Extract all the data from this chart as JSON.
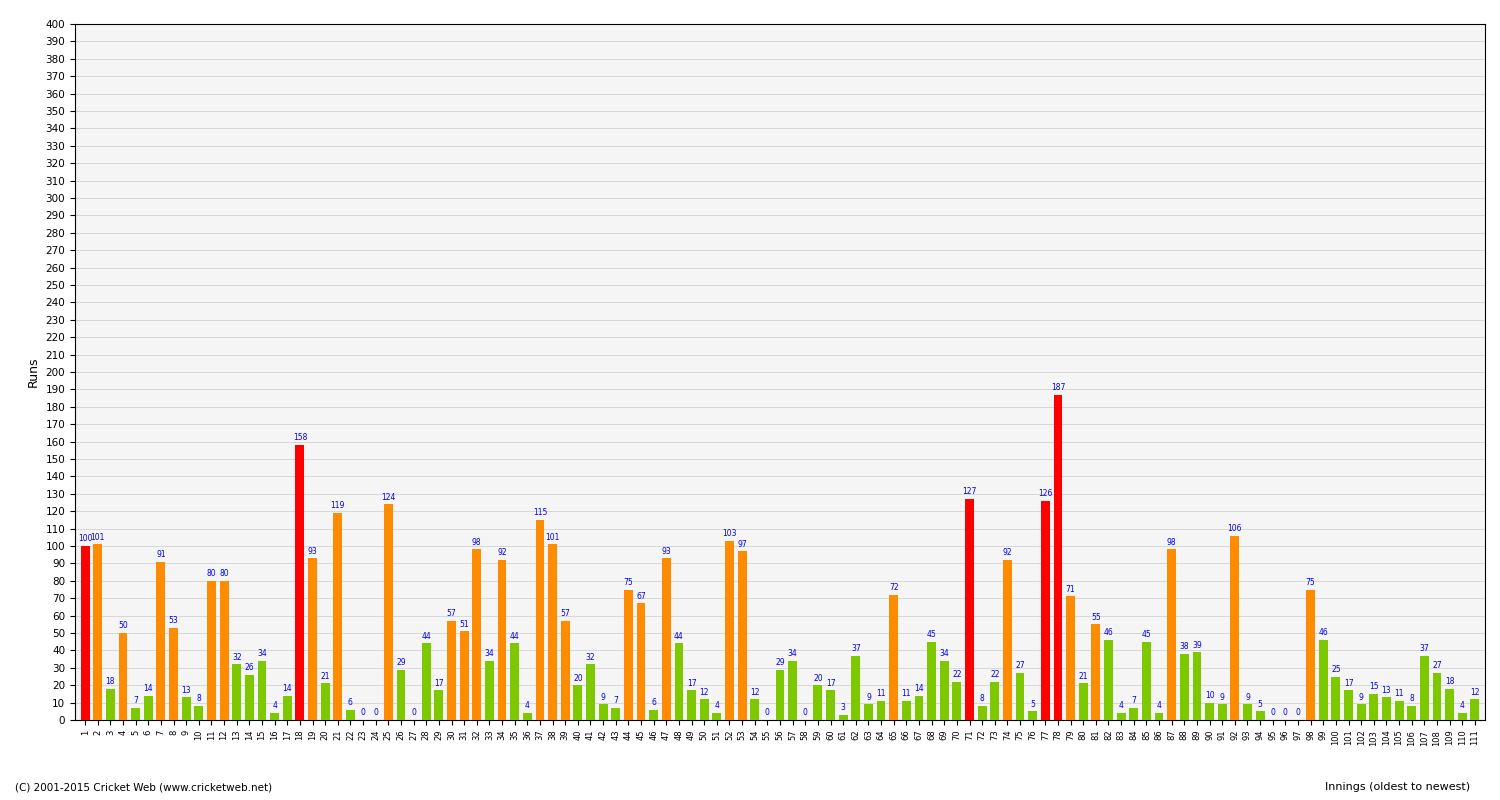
{
  "ylabel": "Runs",
  "xlabel": "Innings (oldest to newest)",
  "footer": "(C) 2001-2015 Cricket Web (www.cricketweb.net)",
  "ylim": [
    0,
    400
  ],
  "bar_width": 0.7,
  "innings": [
    {
      "innings": 1,
      "runs": 100,
      "color": "red"
    },
    {
      "innings": 2,
      "runs": 101,
      "color": "orange"
    },
    {
      "innings": 3,
      "runs": 18,
      "color": "green"
    },
    {
      "innings": 4,
      "runs": 50,
      "color": "orange"
    },
    {
      "innings": 5,
      "runs": 7,
      "color": "green"
    },
    {
      "innings": 6,
      "runs": 14,
      "color": "green"
    },
    {
      "innings": 7,
      "runs": 91,
      "color": "orange"
    },
    {
      "innings": 8,
      "runs": 53,
      "color": "orange"
    },
    {
      "innings": 9,
      "runs": 13,
      "color": "green"
    },
    {
      "innings": 10,
      "runs": 8,
      "color": "green"
    },
    {
      "innings": 11,
      "runs": 80,
      "color": "orange"
    },
    {
      "innings": 12,
      "runs": 80,
      "color": "orange"
    },
    {
      "innings": 13,
      "runs": 32,
      "color": "green"
    },
    {
      "innings": 14,
      "runs": 26,
      "color": "green"
    },
    {
      "innings": 15,
      "runs": 34,
      "color": "green"
    },
    {
      "innings": 16,
      "runs": 4,
      "color": "green"
    },
    {
      "innings": 17,
      "runs": 14,
      "color": "green"
    },
    {
      "innings": 18,
      "runs": 158,
      "color": "red"
    },
    {
      "innings": 19,
      "runs": 93,
      "color": "orange"
    },
    {
      "innings": 20,
      "runs": 21,
      "color": "green"
    },
    {
      "innings": 21,
      "runs": 119,
      "color": "orange"
    },
    {
      "innings": 22,
      "runs": 6,
      "color": "green"
    },
    {
      "innings": 23,
      "runs": 0,
      "color": "green"
    },
    {
      "innings": 24,
      "runs": 0,
      "color": "green"
    },
    {
      "innings": 25,
      "runs": 124,
      "color": "orange"
    },
    {
      "innings": 26,
      "runs": 29,
      "color": "green"
    },
    {
      "innings": 27,
      "runs": 0,
      "color": "green"
    },
    {
      "innings": 28,
      "runs": 44,
      "color": "green"
    },
    {
      "innings": 29,
      "runs": 17,
      "color": "green"
    },
    {
      "innings": 30,
      "runs": 57,
      "color": "orange"
    },
    {
      "innings": 31,
      "runs": 51,
      "color": "orange"
    },
    {
      "innings": 32,
      "runs": 98,
      "color": "orange"
    },
    {
      "innings": 33,
      "runs": 34,
      "color": "green"
    },
    {
      "innings": 34,
      "runs": 92,
      "color": "orange"
    },
    {
      "innings": 35,
      "runs": 44,
      "color": "green"
    },
    {
      "innings": 36,
      "runs": 4,
      "color": "green"
    },
    {
      "innings": 37,
      "runs": 115,
      "color": "orange"
    },
    {
      "innings": 38,
      "runs": 101,
      "color": "orange"
    },
    {
      "innings": 39,
      "runs": 57,
      "color": "orange"
    },
    {
      "innings": 40,
      "runs": 20,
      "color": "green"
    },
    {
      "innings": 41,
      "runs": 32,
      "color": "green"
    },
    {
      "innings": 42,
      "runs": 9,
      "color": "green"
    },
    {
      "innings": 43,
      "runs": 7,
      "color": "green"
    },
    {
      "innings": 44,
      "runs": 75,
      "color": "orange"
    },
    {
      "innings": 45,
      "runs": 67,
      "color": "orange"
    },
    {
      "innings": 46,
      "runs": 6,
      "color": "green"
    },
    {
      "innings": 47,
      "runs": 93,
      "color": "orange"
    },
    {
      "innings": 48,
      "runs": 44,
      "color": "green"
    },
    {
      "innings": 49,
      "runs": 17,
      "color": "green"
    },
    {
      "innings": 50,
      "runs": 12,
      "color": "green"
    },
    {
      "innings": 51,
      "runs": 4,
      "color": "green"
    },
    {
      "innings": 52,
      "runs": 103,
      "color": "orange"
    },
    {
      "innings": 53,
      "runs": 97,
      "color": "orange"
    },
    {
      "innings": 54,
      "runs": 12,
      "color": "green"
    },
    {
      "innings": 55,
      "runs": 0,
      "color": "green"
    },
    {
      "innings": 56,
      "runs": 29,
      "color": "green"
    },
    {
      "innings": 57,
      "runs": 34,
      "color": "green"
    },
    {
      "innings": 58,
      "runs": 0,
      "color": "green"
    },
    {
      "innings": 59,
      "runs": 20,
      "color": "green"
    },
    {
      "innings": 60,
      "runs": 17,
      "color": "green"
    },
    {
      "innings": 61,
      "runs": 3,
      "color": "green"
    },
    {
      "innings": 62,
      "runs": 37,
      "color": "green"
    },
    {
      "innings": 63,
      "runs": 9,
      "color": "green"
    },
    {
      "innings": 64,
      "runs": 11,
      "color": "green"
    },
    {
      "innings": 65,
      "runs": 72,
      "color": "orange"
    },
    {
      "innings": 66,
      "runs": 11,
      "color": "green"
    },
    {
      "innings": 67,
      "runs": 14,
      "color": "green"
    },
    {
      "innings": 68,
      "runs": 45,
      "color": "green"
    },
    {
      "innings": 69,
      "runs": 34,
      "color": "green"
    },
    {
      "innings": 70,
      "runs": 22,
      "color": "green"
    },
    {
      "innings": 71,
      "runs": 127,
      "color": "red"
    },
    {
      "innings": 72,
      "runs": 8,
      "color": "green"
    },
    {
      "innings": 73,
      "runs": 22,
      "color": "green"
    },
    {
      "innings": 74,
      "runs": 92,
      "color": "orange"
    },
    {
      "innings": 75,
      "runs": 27,
      "color": "green"
    },
    {
      "innings": 76,
      "runs": 5,
      "color": "green"
    },
    {
      "innings": 77,
      "runs": 126,
      "color": "red"
    },
    {
      "innings": 78,
      "runs": 187,
      "color": "red"
    },
    {
      "innings": 79,
      "runs": 71,
      "color": "orange"
    },
    {
      "innings": 80,
      "runs": 21,
      "color": "green"
    },
    {
      "innings": 81,
      "runs": 55,
      "color": "orange"
    },
    {
      "innings": 82,
      "runs": 46,
      "color": "green"
    },
    {
      "innings": 83,
      "runs": 4,
      "color": "green"
    },
    {
      "innings": 84,
      "runs": 7,
      "color": "green"
    },
    {
      "innings": 85,
      "runs": 45,
      "color": "green"
    },
    {
      "innings": 86,
      "runs": 4,
      "color": "green"
    },
    {
      "innings": 87,
      "runs": 98,
      "color": "orange"
    },
    {
      "innings": 88,
      "runs": 38,
      "color": "green"
    },
    {
      "innings": 89,
      "runs": 39,
      "color": "green"
    },
    {
      "innings": 90,
      "runs": 10,
      "color": "green"
    },
    {
      "innings": 91,
      "runs": 9,
      "color": "green"
    },
    {
      "innings": 92,
      "runs": 106,
      "color": "orange"
    },
    {
      "innings": 93,
      "runs": 9,
      "color": "green"
    },
    {
      "innings": 94,
      "runs": 5,
      "color": "green"
    },
    {
      "innings": 95,
      "runs": 0,
      "color": "green"
    },
    {
      "innings": 96,
      "runs": 0,
      "color": "green"
    },
    {
      "innings": 97,
      "runs": 0,
      "color": "green"
    },
    {
      "innings": 98,
      "runs": 75,
      "color": "orange"
    },
    {
      "innings": 99,
      "runs": 46,
      "color": "green"
    },
    {
      "innings": 100,
      "runs": 25,
      "color": "green"
    },
    {
      "innings": 101,
      "runs": 17,
      "color": "green"
    },
    {
      "innings": 102,
      "runs": 9,
      "color": "green"
    },
    {
      "innings": 103,
      "runs": 15,
      "color": "green"
    },
    {
      "innings": 104,
      "runs": 13,
      "color": "green"
    },
    {
      "innings": 105,
      "runs": 11,
      "color": "green"
    },
    {
      "innings": 106,
      "runs": 8,
      "color": "green"
    },
    {
      "innings": 107,
      "runs": 37,
      "color": "green"
    },
    {
      "innings": 108,
      "runs": 27,
      "color": "green"
    },
    {
      "innings": 109,
      "runs": 18,
      "color": "green"
    },
    {
      "innings": 110,
      "runs": 4,
      "color": "green"
    },
    {
      "innings": 111,
      "runs": 12,
      "color": "green"
    }
  ],
  "color_red": "#ff0000",
  "color_orange": "#ff8c00",
  "color_green": "#7ec800",
  "background_color": "#ffffff",
  "plot_bg_color": "#f5f5f5",
  "grid_color": "#cccccc",
  "border_color": "#000000"
}
